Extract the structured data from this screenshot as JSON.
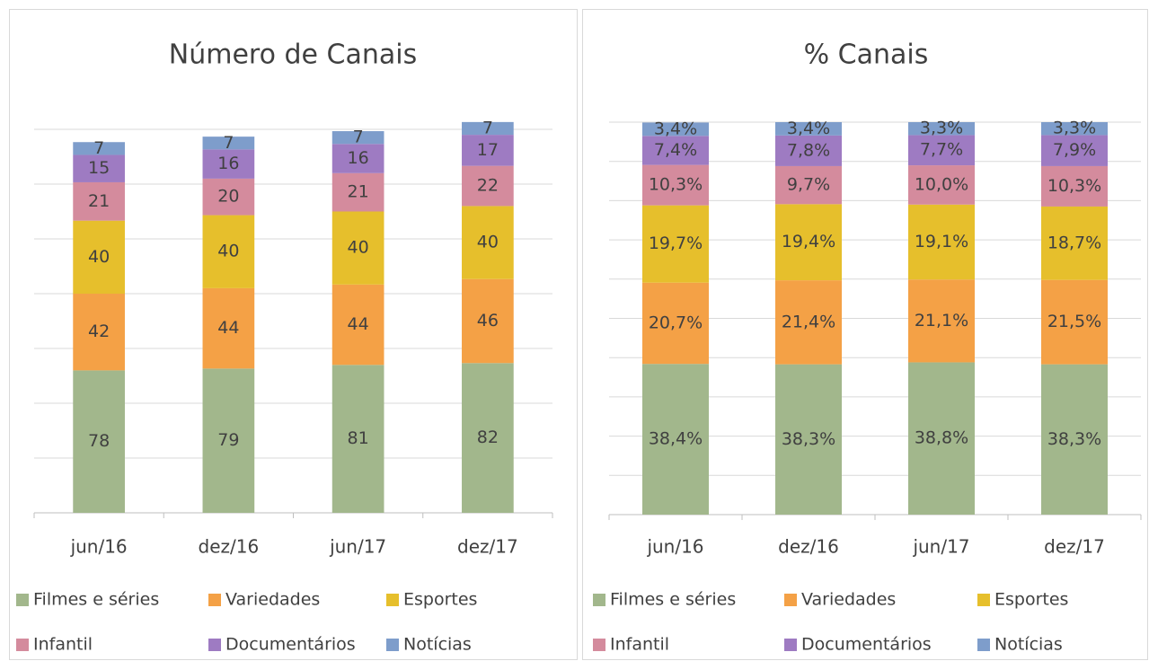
{
  "chart_data": [
    {
      "type": "stacked_bar",
      "title": "Número de Canais",
      "categories": [
        "jun/16",
        "dez/16",
        "jun/17",
        "dez/17"
      ],
      "series": [
        {
          "name": "Filmes e séries",
          "color": "#a2b78c",
          "values": [
            78,
            79,
            81,
            82
          ]
        },
        {
          "name": "Variedades",
          "color": "#f4a146",
          "values": [
            42,
            44,
            44,
            46
          ]
        },
        {
          "name": "Esportes",
          "color": "#e6bf2c",
          "values": [
            40,
            40,
            40,
            40
          ]
        },
        {
          "name": "Infantil",
          "color": "#d48b9d",
          "values": [
            21,
            20,
            21,
            22
          ]
        },
        {
          "name": "Documentários",
          "color": "#9e7bc2",
          "values": [
            15,
            16,
            16,
            17
          ]
        },
        {
          "name": "Notícias",
          "color": "#7e9dcb",
          "values": [
            7,
            7,
            7,
            7
          ]
        }
      ],
      "ylim": [
        0,
        210
      ],
      "yticks": [
        0,
        30,
        60,
        90,
        120,
        150,
        180,
        210
      ],
      "grid": true
    },
    {
      "type": "stacked_bar",
      "title": "% Canais",
      "categories": [
        "jun/16",
        "dez/16",
        "jun/17",
        "dez/17"
      ],
      "series": [
        {
          "name": "Filmes e séries",
          "color": "#a2b78c",
          "values": [
            38.4,
            38.3,
            38.8,
            38.3
          ],
          "value_labels": [
            "38,4%",
            "38,3%",
            "38,8%",
            "38,3%"
          ]
        },
        {
          "name": "Variedades",
          "color": "#f4a146",
          "values": [
            20.7,
            21.4,
            21.1,
            21.5
          ],
          "value_labels": [
            "20,7%",
            "21,4%",
            "21,1%",
            "21,5%"
          ]
        },
        {
          "name": "Esportes",
          "color": "#e6bf2c",
          "values": [
            19.7,
            19.4,
            19.1,
            18.7
          ],
          "value_labels": [
            "19,7%",
            "19,4%",
            "19,1%",
            "18,7%"
          ]
        },
        {
          "name": "Infantil",
          "color": "#d48b9d",
          "values": [
            10.3,
            9.7,
            10.0,
            10.3
          ],
          "value_labels": [
            "10,3%",
            "9,7%",
            "10,0%",
            "10,3%"
          ]
        },
        {
          "name": "Documentários",
          "color": "#9e7bc2",
          "values": [
            7.4,
            7.8,
            7.7,
            7.9
          ],
          "value_labels": [
            "7,4%",
            "7,8%",
            "7,7%",
            "7,9%"
          ]
        },
        {
          "name": "Notícias",
          "color": "#7e9dcb",
          "values": [
            3.4,
            3.4,
            3.3,
            3.3
          ],
          "value_labels": [
            "3,4%",
            "3,4%",
            "3,3%",
            "3,3%"
          ]
        }
      ],
      "ylim": [
        0,
        100
      ],
      "yticks": [
        0,
        10,
        20,
        30,
        40,
        50,
        60,
        70,
        80,
        90,
        100
      ],
      "grid": true
    }
  ]
}
